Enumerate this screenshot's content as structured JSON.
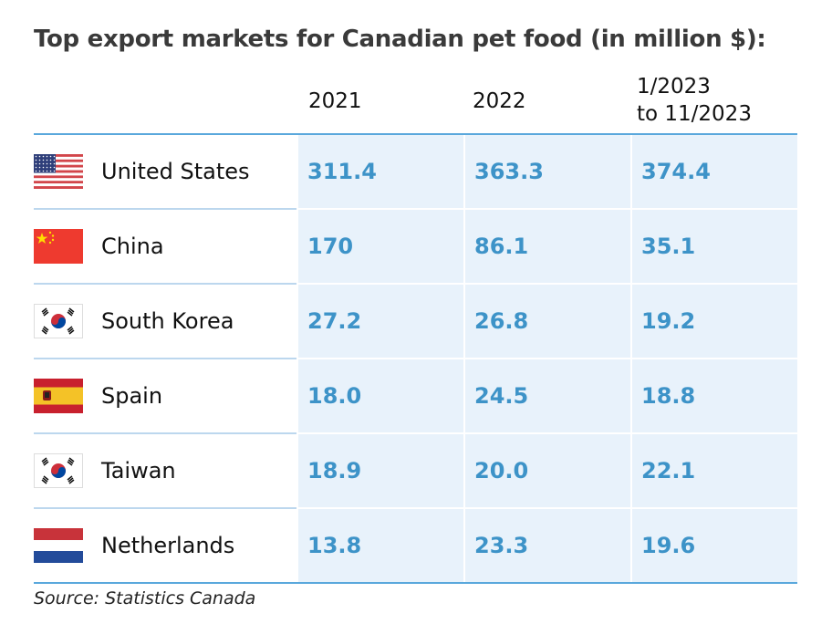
{
  "title": "Top export markets for Canadian pet food (in million $):",
  "columns": [
    "2021",
    "2022",
    "1/2023\nto 11/2023"
  ],
  "column_lines": [
    "1/2023",
    "to 11/2023"
  ],
  "rows": [
    {
      "country": "United States",
      "flag": "us-flag-icon",
      "values": [
        "311.4",
        "363.3",
        "374.4"
      ]
    },
    {
      "country": "China",
      "flag": "china-flag-icon",
      "values": [
        "170",
        "86.1",
        "35.1"
      ]
    },
    {
      "country": "South Korea",
      "flag": "south-korea-flag-icon",
      "values": [
        "27.2",
        "26.8",
        "19.2"
      ]
    },
    {
      "country": "Spain",
      "flag": "spain-flag-icon",
      "values": [
        "18.0",
        "24.5",
        "18.8"
      ]
    },
    {
      "country": "Taiwan",
      "flag": "south-korea-flag-icon",
      "values": [
        "18.9",
        "20.0",
        "22.1"
      ]
    },
    {
      "country": "Netherlands",
      "flag": "netherlands-flag-icon",
      "values": [
        "13.8",
        "23.3",
        "19.6"
      ]
    }
  ],
  "source": "Source: Statistics Canada",
  "colors": {
    "value_text": "#3d93c8",
    "cell_bg": "#e8f2fb",
    "rule": "#5aa8dc"
  },
  "chart_data": {
    "type": "table",
    "title": "Top export markets for Canadian pet food (in million $):",
    "columns": [
      "2021",
      "2022",
      "1/2023 to 11/2023"
    ],
    "categories": [
      "United States",
      "China",
      "South Korea",
      "Spain",
      "Taiwan",
      "Netherlands"
    ],
    "series": [
      {
        "name": "2021",
        "values": [
          311.4,
          170,
          27.2,
          18.0,
          18.9,
          13.8
        ]
      },
      {
        "name": "2022",
        "values": [
          363.3,
          86.1,
          26.8,
          24.5,
          20.0,
          23.3
        ]
      },
      {
        "name": "1/2023 to 11/2023",
        "values": [
          374.4,
          35.1,
          19.2,
          18.8,
          22.1,
          19.6
        ]
      }
    ]
  }
}
